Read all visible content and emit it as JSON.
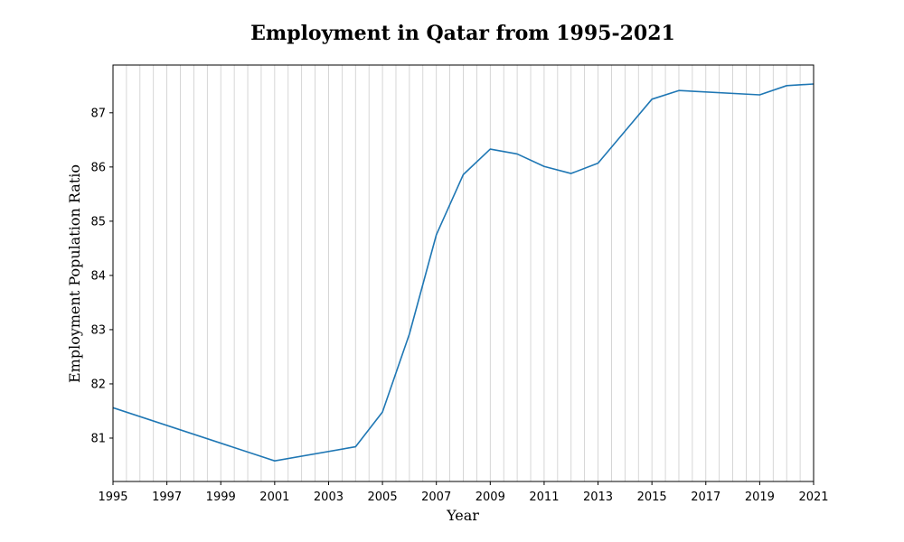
{
  "chart_data": {
    "type": "line",
    "title": "Employment in Qatar from 1995-2021",
    "xlabel": "Year",
    "ylabel": "Employment Population Ratio",
    "xlim": [
      1995,
      2021
    ],
    "ylim": [
      80.2,
      87.88
    ],
    "x_ticks": [
      1995,
      1997,
      1999,
      2001,
      2003,
      2005,
      2007,
      2009,
      2011,
      2013,
      2015,
      2017,
      2019,
      2021
    ],
    "y_ticks": [
      81,
      82,
      83,
      84,
      85,
      86,
      87
    ],
    "grid": "vertical-minor",
    "line_color": "#1f77b4",
    "grid_color": "#cccccc",
    "x": [
      1995,
      2001,
      2004,
      2005,
      2006,
      2007,
      2008,
      2009,
      2010,
      2011,
      2012,
      2013,
      2014,
      2015,
      2016,
      2019,
      2020,
      2021
    ],
    "y": [
      81.56,
      80.58,
      80.84,
      81.48,
      82.92,
      84.75,
      85.86,
      86.33,
      86.24,
      86.01,
      85.88,
      86.07,
      86.66,
      87.25,
      87.41,
      87.33,
      87.5,
      87.53
    ]
  }
}
